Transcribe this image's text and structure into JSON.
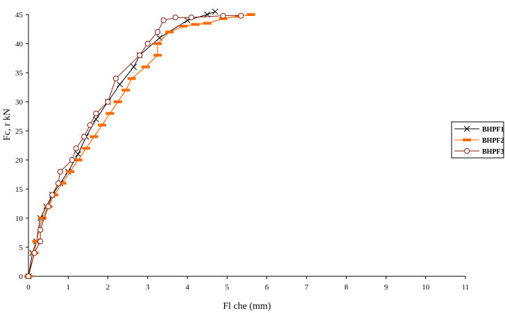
{
  "chart_data": {
    "type": "line",
    "xlabel": "Fl che (mm)",
    "ylabel": "Fc, r kN",
    "xlim": [
      0,
      11
    ],
    "ylim": [
      0,
      45
    ],
    "xticks": [
      0,
      1,
      2,
      3,
      4,
      5,
      6,
      7,
      8,
      9,
      10,
      11
    ],
    "yticks": [
      0,
      5,
      10,
      15,
      20,
      25,
      30,
      35,
      40,
      45
    ],
    "grid": false,
    "legend_position": "right",
    "series": [
      {
        "name": "BHPF1",
        "color": "#000000",
        "marker": "x",
        "x": [
          0,
          0.1,
          0.2,
          0.3,
          0.45,
          0.6,
          0.8,
          1.0,
          1.25,
          1.45,
          1.7,
          2.0,
          2.3,
          2.65,
          2.8,
          3.3,
          4.0,
          4.5,
          4.7
        ],
        "y": [
          0,
          4,
          6,
          10,
          12,
          14,
          16,
          18,
          21,
          24,
          27,
          30,
          33,
          36,
          38,
          41,
          44,
          45,
          45.5
        ]
      },
      {
        "name": "BHPF2",
        "color": "#ff6a00",
        "marker": "dash",
        "x": [
          0,
          0.15,
          0.2,
          0.35,
          0.5,
          0.65,
          0.85,
          1.05,
          1.25,
          1.45,
          1.65,
          1.85,
          2.05,
          2.25,
          2.45,
          2.6,
          2.95,
          3.25,
          3.25,
          3.55,
          3.9,
          4.2,
          4.5,
          4.9,
          5.3,
          5.6
        ],
        "y": [
          0,
          4,
          6,
          10,
          12,
          14,
          16,
          18,
          20,
          22,
          24,
          26,
          28,
          30,
          32,
          34,
          36,
          38,
          40,
          42,
          43,
          43.3,
          43.5,
          44.3,
          44.7,
          45
        ]
      },
      {
        "name": "BHPF3",
        "color": "#8b1a0a",
        "marker": "circle",
        "x": [
          0,
          0.15,
          0.3,
          0.3,
          0.5,
          0.6,
          0.75,
          0.8,
          1.1,
          1.2,
          1.4,
          1.55,
          1.7,
          2.0,
          2.2,
          2.8,
          3.0,
          3.25,
          3.4,
          3.7,
          4.1,
          4.9,
          5.35
        ],
        "y": [
          0,
          4,
          6,
          8,
          12,
          14,
          16,
          18,
          20,
          22,
          24,
          26,
          28,
          30,
          34,
          38,
          40,
          42,
          44,
          44.5,
          44.5,
          44.8,
          44.8
        ]
      }
    ]
  }
}
